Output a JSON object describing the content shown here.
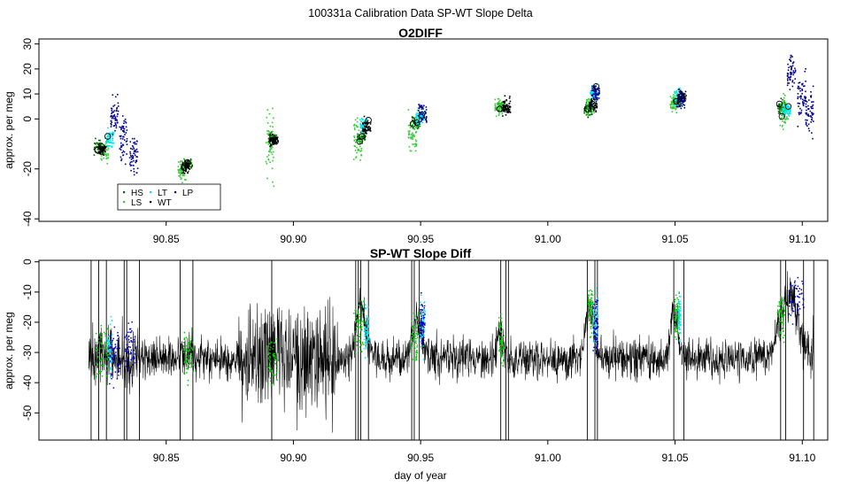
{
  "figure_title": "100331a   Calibration Data SP-WT Slope Delta",
  "xlabel": "day of year",
  "chart_data": [
    {
      "type": "scatter",
      "title": "O2DIFF",
      "xlabel": "",
      "ylabel": "approx. per meg",
      "xlim": [
        90.8,
        91.11
      ],
      "ylim": [
        -41,
        32
      ],
      "xticks": [
        90.85,
        90.9,
        90.95,
        91.0,
        91.05,
        91.1
      ],
      "xtick_labels": [
        "90.85",
        "90.90",
        "90.95",
        "91.00",
        "91.05",
        "91.10"
      ],
      "yticks": [
        -40,
        -20,
        0,
        10,
        20,
        30
      ],
      "ytick_labels": [
        "-40",
        "-20",
        "0",
        "10",
        "20",
        "30"
      ],
      "legend_position": "bottom-left",
      "series": [
        {
          "name": "HS",
          "color": "#006400",
          "clusters": [
            [
              90.823,
              -11,
              2.5
            ],
            [
              90.8585,
              -18,
              2
            ],
            [
              90.8915,
              -8,
              2
            ],
            [
              90.9265,
              -7,
              2
            ],
            [
              90.948,
              -1,
              2
            ],
            [
              90.982,
              5,
              1.8
            ],
            [
              91.0155,
              4,
              2
            ],
            [
              91.0505,
              7,
              1.8
            ],
            [
              91.0915,
              5,
              2
            ]
          ]
        },
        {
          "name": "LS",
          "color": "#32cd32",
          "clusters": [
            [
              90.8255,
              -13,
              4
            ],
            [
              90.856,
              -20,
              4
            ],
            [
              90.8905,
              -10,
              10
            ],
            [
              90.925,
              -8,
              7
            ],
            [
              90.9465,
              -6,
              6
            ],
            [
              90.9805,
              5,
              2.5
            ],
            [
              91.0165,
              5,
              3
            ],
            [
              91.0495,
              7,
              3
            ],
            [
              91.0925,
              3,
              6
            ]
          ]
        },
        {
          "name": "LT",
          "color": "#00e5ee",
          "clusters": [
            [
              90.8275,
              -8,
              3
            ],
            [
              90.9275,
              -2,
              3
            ],
            [
              90.9495,
              1,
              3
            ],
            [
              91.018,
              10,
              3
            ],
            [
              91.051,
              9,
              3
            ],
            [
              91.0935,
              4,
              2
            ]
          ]
        },
        {
          "name": "WT",
          "color": "#000000",
          "clusters": [
            [
              90.8245,
              -12,
              2
            ],
            [
              90.8575,
              -19,
              2
            ],
            [
              90.892,
              -8,
              2
            ],
            [
              90.9285,
              -3,
              3
            ],
            [
              90.9835,
              5,
              3
            ],
            [
              91.0175,
              6,
              2
            ],
            [
              91.0525,
              9,
              2
            ]
          ]
        },
        {
          "name": "LP",
          "color": "#00008b",
          "clusters": [
            [
              90.8295,
              2,
              6
            ],
            [
              90.833,
              -8,
              7
            ],
            [
              90.837,
              -14,
              6
            ],
            [
              90.9505,
              3,
              4
            ],
            [
              91.0185,
              11,
              3
            ],
            [
              91.052,
              8,
              3
            ],
            [
              91.0955,
              19,
              5
            ],
            [
              91.0995,
              8,
              8
            ],
            [
              91.1025,
              2,
              8
            ]
          ]
        }
      ],
      "circle_markers": [
        {
          "x": 90.823,
          "y": -12.5
        },
        {
          "x": 90.8245,
          "y": -11
        },
        {
          "x": 90.827,
          "y": -7
        },
        {
          "x": 90.857,
          "y": -19.5
        },
        {
          "x": 90.8585,
          "y": -17.5
        },
        {
          "x": 90.8915,
          "y": -9
        },
        {
          "x": 90.893,
          "y": -9
        },
        {
          "x": 90.926,
          "y": -9
        },
        {
          "x": 90.927,
          "y": -7
        },
        {
          "x": 90.9295,
          "y": -0.5
        },
        {
          "x": 90.947,
          "y": -2
        },
        {
          "x": 90.9485,
          "y": -1.5
        },
        {
          "x": 90.9505,
          "y": 1.5
        },
        {
          "x": 90.981,
          "y": 4
        },
        {
          "x": 90.9835,
          "y": 4
        },
        {
          "x": 91.0155,
          "y": 4
        },
        {
          "x": 91.0175,
          "y": 6
        },
        {
          "x": 91.019,
          "y": 13
        },
        {
          "x": 91.0505,
          "y": 7
        },
        {
          "x": 91.0525,
          "y": 9
        },
        {
          "x": 91.091,
          "y": 6
        },
        {
          "x": 91.092,
          "y": 1
        },
        {
          "x": 91.0945,
          "y": 5
        }
      ]
    },
    {
      "type": "line",
      "title": "SP-WT Slope Diff",
      "xlabel": "day of year",
      "ylabel": "approx. per meg",
      "xlim": [
        90.8,
        91.11
      ],
      "ylim": [
        -59,
        0.5
      ],
      "xticks": [
        90.85,
        90.9,
        90.95,
        91.0,
        91.05,
        91.1
      ],
      "xtick_labels": [
        "90.85",
        "90.90",
        "90.95",
        "91.00",
        "91.05",
        "91.10"
      ],
      "yticks": [
        -50,
        -40,
        -30,
        -20,
        -10,
        0
      ],
      "ytick_labels": [
        "-50",
        "-40",
        "-30",
        "-20",
        "-10",
        "0"
      ],
      "line_series": {
        "name": "SP-WT slope diff",
        "color": "#000000",
        "x_start": 90.8195,
        "x_end": 91.1045,
        "baseline": -32,
        "noise_amplitude": 6
      },
      "high_noise_segments": [
        [
          90.8785,
          90.9175,
          16
        ],
        [
          90.8205,
          90.8395,
          9
        ],
        [
          91.0925,
          91.1045,
          8
        ]
      ],
      "calibration_bumps": [
        [
          90.8255,
          -30,
          0.004
        ],
        [
          90.8595,
          -30,
          0.003
        ],
        [
          90.8935,
          -28,
          0.003
        ],
        [
          90.9265,
          -14,
          0.0025
        ],
        [
          90.9485,
          -20,
          0.0025
        ],
        [
          90.9815,
          -24,
          0.002
        ],
        [
          91.0165,
          -14,
          0.002
        ],
        [
          91.0495,
          -17,
          0.002
        ],
        [
          91.095,
          -10,
          0.005
        ]
      ],
      "vertical_spikes": [
        90.8205,
        90.8235,
        90.8265,
        90.8335,
        90.8345,
        90.8395,
        90.8555,
        90.8605,
        90.8915,
        90.9245,
        90.9255,
        90.9265,
        90.9295,
        90.9465,
        90.9475,
        90.9495,
        90.9815,
        90.9835,
        90.9845,
        91.0155,
        91.0185,
        91.0195,
        91.0495,
        91.0535,
        91.0915,
        91.0935,
        91.1005,
        91.1045
      ],
      "overlay_series": [
        {
          "name": "HS/LS",
          "color": "#00cc00",
          "clusters": [
            [
              90.8245,
              -30,
              0.005
            ],
            [
              90.8585,
              -30,
              0.004
            ],
            [
              90.8915,
              -32,
              0.004
            ],
            [
              90.9255,
              -22,
              0.004
            ],
            [
              90.9475,
              -24,
              0.003
            ],
            [
              90.9815,
              -26,
              0.002
            ],
            [
              91.0165,
              -16,
              0.002
            ],
            [
              91.0505,
              -18,
              0.002
            ],
            [
              91.0915,
              -18,
              0.003
            ]
          ]
        },
        {
          "name": "LT",
          "color": "#00e5ee",
          "clusters": [
            [
              90.8275,
              -28,
              0.002
            ],
            [
              90.9285,
              -22,
              0.002
            ],
            [
              90.9505,
              -20,
              0.002
            ],
            [
              91.0185,
              -20,
              0.002
            ],
            [
              91.0515,
              -18,
              0.001
            ]
          ]
        },
        {
          "name": "LP",
          "color": "#0000cd",
          "clusters": [
            [
              90.8295,
              -30,
              0.004
            ],
            [
              90.8355,
              -28,
              0.004
            ],
            [
              90.9505,
              -20,
              0.002
            ],
            [
              91.0185,
              -22,
              0.002
            ],
            [
              91.0975,
              -12,
              0.006
            ]
          ]
        }
      ]
    }
  ]
}
